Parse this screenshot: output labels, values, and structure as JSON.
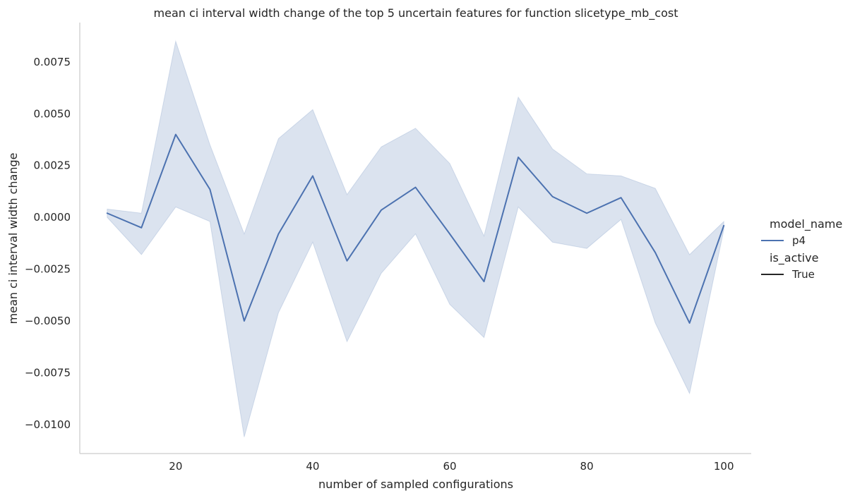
{
  "chart_data": {
    "type": "line",
    "title": "mean ci interval width change of the top 5 uncertain features for function slicetype_mb_cost",
    "xlabel": "number of sampled configurations",
    "ylabel": "mean ci interval width change",
    "xlim": [
      6,
      104
    ],
    "ylim": [
      -0.0114,
      0.0094
    ],
    "xticks": [
      {
        "value": 20,
        "label": "20"
      },
      {
        "value": 40,
        "label": "40"
      },
      {
        "value": 60,
        "label": "60"
      },
      {
        "value": 80,
        "label": "80"
      },
      {
        "value": 100,
        "label": "100"
      }
    ],
    "yticks": [
      {
        "value": 0.0075,
        "label": "0.0075"
      },
      {
        "value": 0.005,
        "label": "0.0050"
      },
      {
        "value": 0.0025,
        "label": "0.0025"
      },
      {
        "value": 0.0,
        "label": "0.0000"
      },
      {
        "value": -0.0025,
        "label": "−0.0025"
      },
      {
        "value": -0.005,
        "label": "−0.0050"
      },
      {
        "value": -0.0075,
        "label": "−0.0075"
      },
      {
        "value": -0.01,
        "label": "−0.0100"
      }
    ],
    "grid": false,
    "legend_position": "right",
    "legend": {
      "hue_title": "model_name",
      "hue_entries": [
        {
          "label": "p4",
          "color": "#4c72b0"
        }
      ],
      "style_title": "is_active",
      "style_entries": [
        {
          "label": "True",
          "color": "#262626"
        }
      ]
    },
    "series": [
      {
        "name": "p4",
        "color": "#4c72b0",
        "band_color": "#4c72b0",
        "x": [
          10,
          15,
          20,
          25,
          30,
          35,
          40,
          45,
          50,
          55,
          60,
          65,
          70,
          75,
          80,
          85,
          90,
          95,
          100
        ],
        "y": [
          0.0002,
          -0.0005,
          0.004,
          0.00135,
          -0.005,
          -0.0008,
          0.002,
          -0.0021,
          0.00035,
          0.00145,
          -0.0008,
          -0.0031,
          0.0029,
          0.001,
          0.0002,
          0.00095,
          -0.0017,
          -0.0051,
          -0.0004
        ],
        "ci_upper": [
          0.0004,
          0.0002,
          0.0085,
          0.0035,
          -0.0008,
          0.0038,
          0.0052,
          0.0011,
          0.0034,
          0.0043,
          0.0026,
          -0.0009,
          0.0058,
          0.0033,
          0.0021,
          0.002,
          0.0014,
          -0.0018,
          -0.0002
        ],
        "ci_lower": [
          0.0,
          -0.0018,
          0.0005,
          -0.0002,
          -0.0106,
          -0.0046,
          -0.0012,
          -0.006,
          -0.0027,
          -0.0008,
          -0.0042,
          -0.0058,
          0.0005,
          -0.0012,
          -0.0015,
          -0.0001,
          -0.0051,
          -0.0085,
          -0.0006
        ]
      }
    ]
  }
}
